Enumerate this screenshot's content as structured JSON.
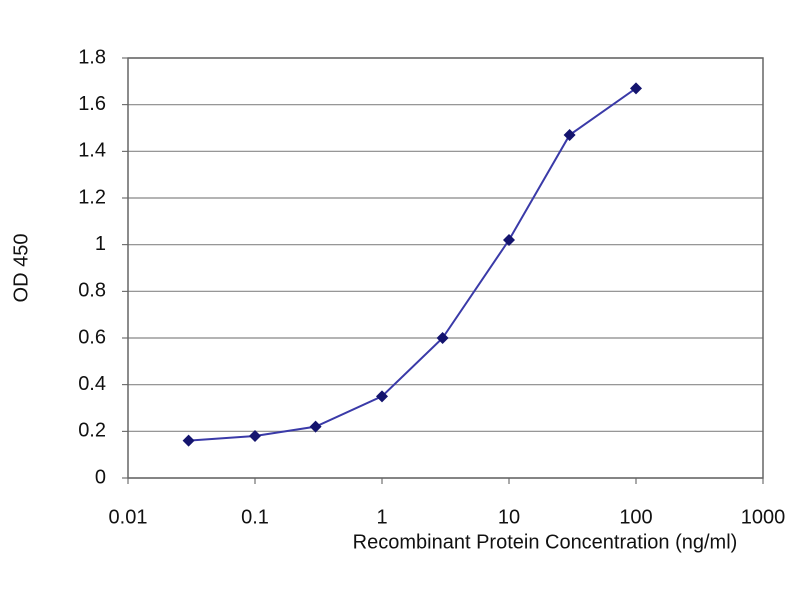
{
  "chart_data": {
    "type": "line",
    "x_label": "Recombinant Protein Concentration (ng/ml)",
    "y_label": "OD 450",
    "x": [
      0.03,
      0.1,
      0.3,
      1,
      3,
      10,
      30,
      100
    ],
    "series": [
      {
        "color": "#3a3aa8",
        "marker_color": "#14146e",
        "values": [
          0.16,
          0.18,
          0.22,
          0.35,
          0.6,
          1.02,
          1.47,
          1.67
        ]
      }
    ],
    "xscale": "log",
    "xlim": [
      0.01,
      1000
    ],
    "xticks": [
      0.01,
      0.1,
      1,
      10,
      100,
      1000
    ],
    "ylim": [
      0,
      1.8
    ],
    "yticks": [
      0,
      0.2,
      0.4,
      0.6,
      0.8,
      1,
      1.2,
      1.4,
      1.6,
      1.8
    ],
    "grid": true
  }
}
